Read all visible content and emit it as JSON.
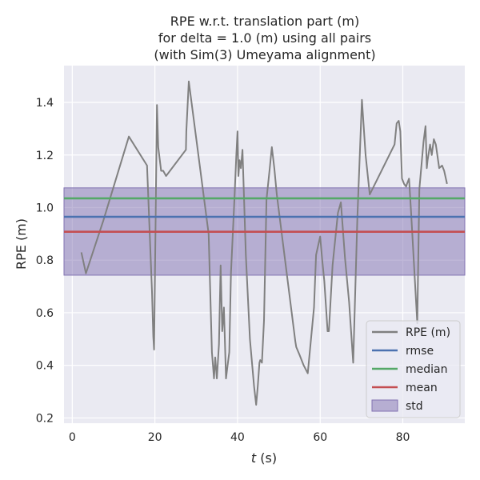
{
  "chart_data": {
    "type": "line",
    "title_lines": [
      "RPE w.r.t. translation part (m)",
      "for delta = 1.0 (m) using all pairs",
      "(with Sim(3) Umeyama alignment)"
    ],
    "xlabel_var": "t",
    "xlabel_unit": " (s)",
    "ylabel": "RPE (m)",
    "xlim": [
      -2,
      95
    ],
    "ylim": [
      0.18,
      1.54
    ],
    "x_ticks": [
      0,
      20,
      40,
      60,
      80
    ],
    "y_ticks": [
      0.2,
      0.4,
      0.6,
      0.8,
      1.0,
      1.2,
      1.4
    ],
    "y_tick_labels": [
      "0.2",
      "0.4",
      "0.6",
      "0.8",
      "1.0",
      "1.2",
      "1.4"
    ],
    "grid": true,
    "legend_position": "lower-right",
    "colors": {
      "background": "#eaeaf2",
      "grid": "#ffffff",
      "series": "#808080",
      "rmse": "#4c72b0",
      "median": "#55a868",
      "mean": "#c44e52",
      "std": "#8172b2"
    },
    "series": [
      {
        "name": "RPE (m)",
        "x": [
          2.2,
          3.3,
          7.5,
          13.7,
          18.1,
          19.3,
          19.6,
          19.8,
          20.5,
          20.8,
          21.5,
          22.0,
          22.7,
          27.5,
          27.6,
          28.2,
          33.0,
          33.8,
          34.3,
          34.6,
          35.0,
          35.5,
          35.9,
          36.3,
          36.7,
          37.2,
          37.6,
          38.0,
          38.4,
          39.3,
          39.7,
          40.0,
          40.2,
          40.5,
          40.8,
          41.2,
          41.6,
          42.0,
          43.0,
          44.0,
          44.5,
          44.9,
          45.3,
          45.5,
          45.9,
          46.4,
          47.0,
          47.8,
          48.3,
          48.9,
          49.5,
          54.0,
          54.2,
          55.0,
          56.0,
          57.0,
          58.5,
          59.0,
          60.0,
          60.5,
          61.0,
          61.8,
          62.1,
          63.0,
          64.3,
          65.0,
          66.0,
          67.0,
          68.0,
          69.0,
          70.1,
          71.0,
          72.0,
          78.0,
          78.5,
          79.0,
          79.4,
          79.8,
          80.3,
          80.8,
          81.0,
          81.5,
          82.0,
          83.5,
          84.0,
          85.0,
          85.5,
          85.8,
          86.0,
          86.6,
          87.0,
          87.5,
          88.0,
          88.8,
          89.5,
          90.0,
          90.7
        ],
        "y": [
          0.83,
          0.75,
          0.95,
          1.27,
          1.16,
          0.68,
          0.51,
          0.46,
          1.39,
          1.23,
          1.14,
          1.14,
          1.12,
          1.22,
          1.29,
          1.48,
          0.9,
          0.45,
          0.35,
          0.43,
          0.35,
          0.48,
          0.78,
          0.53,
          0.62,
          0.35,
          0.4,
          0.45,
          0.75,
          1.05,
          1.2,
          1.29,
          1.12,
          1.18,
          1.15,
          1.22,
          1.02,
          0.82,
          0.5,
          0.32,
          0.25,
          0.32,
          0.41,
          0.42,
          0.41,
          0.57,
          1.03,
          1.15,
          1.23,
          1.15,
          1.05,
          0.49,
          0.47,
          0.44,
          0.4,
          0.37,
          0.62,
          0.82,
          0.89,
          0.8,
          0.72,
          0.53,
          0.53,
          0.78,
          0.98,
          1.02,
          0.81,
          0.64,
          0.41,
          0.96,
          1.41,
          1.2,
          1.05,
          1.24,
          1.32,
          1.33,
          1.29,
          1.11,
          1.09,
          1.08,
          1.09,
          1.11,
          0.98,
          0.56,
          1.07,
          1.25,
          1.31,
          1.15,
          1.18,
          1.24,
          1.2,
          1.26,
          1.24,
          1.15,
          1.16,
          1.14,
          1.09
        ]
      }
    ],
    "stats": [
      {
        "name": "rmse",
        "value": 0.965
      },
      {
        "name": "median",
        "value": 1.035
      },
      {
        "name": "mean",
        "value": 0.908
      }
    ],
    "std_band": {
      "name": "std",
      "low": 0.743,
      "high": 1.075
    },
    "legend": [
      "RPE (m)",
      "rmse",
      "median",
      "mean",
      "std"
    ]
  }
}
